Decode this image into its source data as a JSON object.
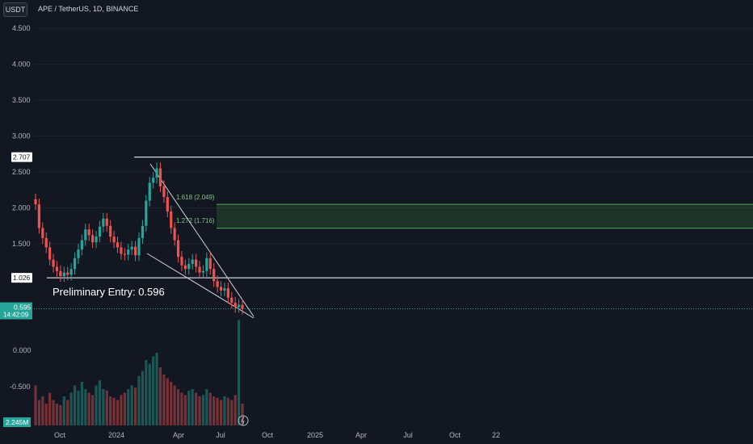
{
  "header": {
    "quote_currency": "USDT",
    "symbol_title": "APE / TetherUS, 1D, BINANCE"
  },
  "colors": {
    "background": "#131722",
    "up": "#26a69a",
    "down": "#ef5350",
    "level_line": "#ffffff",
    "fib_zone": "#4caf50"
  },
  "chart_data": {
    "type": "candlestick",
    "title": "APE / TetherUS, 1D, BINANCE",
    "price_axis": {
      "ticks": [
        "4.500",
        "4.000",
        "3.500",
        "3.000",
        "2.500",
        "2.000",
        "1.500"
      ],
      "range": [
        0.4,
        4.6
      ]
    },
    "volume_axis": {
      "ticks": [
        "0.000",
        "-0.500"
      ]
    },
    "time_axis": {
      "ticks": [
        "Oct",
        "2024",
        "Apr",
        "Jul",
        "Oct",
        "2025",
        "Apr",
        "Jul",
        "Oct",
        "22"
      ]
    },
    "levels": [
      {
        "label": "2.707",
        "price": 2.707
      },
      {
        "label": "1.026",
        "price": 1.026
      }
    ],
    "fib_zone": {
      "upper_label": "1.618 (2.049)",
      "upper": 2.049,
      "lower_label": "1.272 (1.716)",
      "lower": 1.716
    },
    "annotation": "Preliminary Entry: 0.596",
    "current_price": {
      "label": "0.595",
      "countdown": "14:42:09",
      "price": 0.595
    },
    "volume_label": "2.245M",
    "series_close": [
      2.05,
      1.72,
      1.58,
      1.45,
      1.28,
      1.18,
      1.12,
      1.05,
      1.1,
      1.07,
      1.15,
      1.3,
      1.42,
      1.55,
      1.7,
      1.62,
      1.52,
      1.6,
      1.74,
      1.85,
      1.75,
      1.6,
      1.52,
      1.45,
      1.36,
      1.35,
      1.42,
      1.46,
      1.34,
      1.58,
      1.75,
      2.1,
      2.35,
      2.42,
      2.55,
      2.3,
      2.15,
      1.95,
      1.72,
      1.55,
      1.32,
      1.2,
      1.15,
      1.22,
      1.28,
      1.18,
      1.1,
      1.12,
      1.3,
      1.15,
      0.98,
      0.9,
      0.85,
      0.88,
      0.75,
      0.68,
      0.62,
      0.65,
      0.595
    ],
    "volume_values": [
      0.55,
      0.35,
      0.4,
      0.3,
      0.45,
      0.35,
      0.3,
      0.28,
      0.4,
      0.35,
      0.45,
      0.55,
      0.48,
      0.6,
      0.5,
      0.45,
      0.42,
      0.55,
      0.62,
      0.5,
      0.48,
      0.4,
      0.38,
      0.35,
      0.42,
      0.45,
      0.5,
      0.55,
      0.52,
      0.68,
      0.75,
      0.9,
      0.85,
      0.95,
      1.0,
      0.8,
      0.7,
      0.65,
      0.6,
      0.55,
      0.5,
      0.45,
      0.42,
      0.48,
      0.5,
      0.45,
      0.4,
      0.42,
      0.5,
      0.45,
      0.4,
      0.38,
      0.35,
      0.4,
      0.38,
      0.35,
      0.42,
      1.45,
      0.3
    ]
  }
}
